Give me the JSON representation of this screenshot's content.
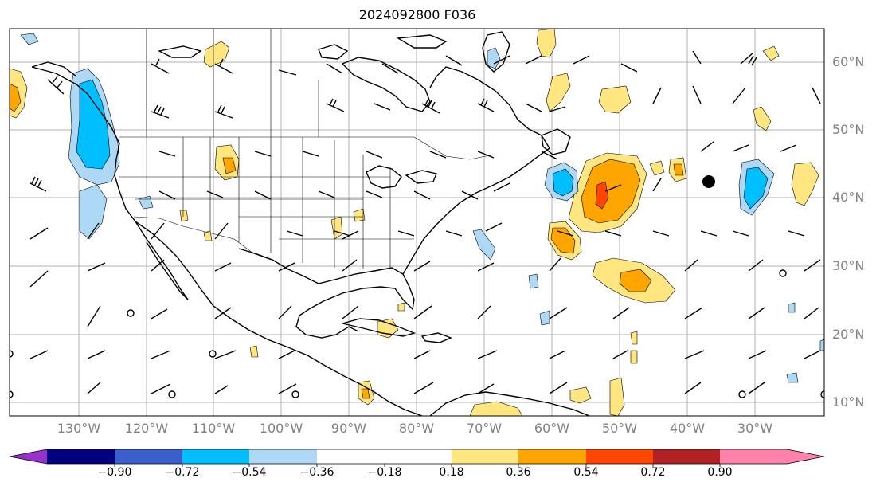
{
  "title": "2024092800 F036",
  "map": {
    "lat_labels": [
      "60°N",
      "50°N",
      "40°N",
      "30°N",
      "20°N",
      "10°N"
    ],
    "lon_labels": [
      "130°W",
      "120°W",
      "110°W",
      "100°W",
      "90°W",
      "80°W",
      "70°W",
      "60°W",
      "50°W",
      "40°W",
      "30°W"
    ]
  },
  "colorbar": {
    "labels": [
      "−0.90",
      "−0.72",
      "−0.54",
      "−0.36",
      "−0.18",
      "0.18",
      "0.36",
      "0.54",
      "0.72",
      "0.90"
    ],
    "colors": [
      "#9932cc",
      "#000080",
      "#3a5fcd",
      "#00bfff",
      "#add8f6",
      "#ffffff",
      "#ffe680",
      "#ffa500",
      "#ff4500",
      "#b22222",
      "#ff82ab"
    ]
  },
  "colors": {
    "light_blue": "#add8f6",
    "blue": "#00bfff",
    "yellow": "#ffe680",
    "orange": "#ffa500",
    "red_orange": "#ff4500"
  }
}
